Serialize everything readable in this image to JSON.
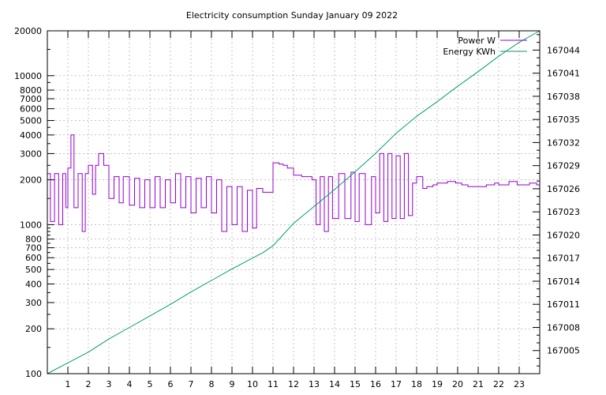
{
  "chart_data": {
    "type": "line",
    "title": "Electricity consumption Sunday January 09 2022",
    "xlabel": "",
    "ylabel": "",
    "y2label": "",
    "x_ticks": [
      "1",
      "2",
      "3",
      "4",
      "5",
      "6",
      "7",
      "8",
      "9",
      "10",
      "11",
      "12",
      "13",
      "14",
      "15",
      "16",
      "17",
      "18",
      "19",
      "20",
      "21",
      "22",
      "23"
    ],
    "xlim": [
      0,
      24
    ],
    "y": {
      "scale": "log",
      "lim": [
        100,
        20000
      ],
      "ticks": [
        100,
        200,
        300,
        400,
        500,
        600,
        700,
        800,
        1000,
        2000,
        3000,
        4000,
        5000,
        6000,
        7000,
        8000,
        10000,
        20000
      ],
      "tick_labels": [
        "100",
        "200",
        "300",
        "400",
        "500",
        "600",
        "700",
        "800",
        "1000",
        "2000",
        "3000",
        "4000",
        "5000",
        "6000",
        "7000",
        "8000",
        "10000",
        "20000"
      ]
    },
    "y2": {
      "scale": "linear",
      "lim": [
        167002,
        167046.5
      ],
      "ticks": [
        167005,
        167008,
        167011,
        167014,
        167017,
        167020,
        167023,
        167026,
        167029,
        167032,
        167035,
        167038,
        167041,
        167044
      ],
      "tick_labels": [
        "167005",
        "167008",
        "167011",
        "167014",
        "167017",
        "167020",
        "167023",
        "167026",
        "167029",
        "167032",
        "167035",
        "167038",
        "167041",
        "167044"
      ]
    },
    "grid": true,
    "legend_position": "top-right",
    "series": [
      {
        "name": "Power W",
        "axis": "y",
        "color": "#9400d3",
        "style": "step",
        "x": [
          0.0,
          0.15,
          0.35,
          0.55,
          0.75,
          0.9,
          1.0,
          1.15,
          1.3,
          1.5,
          1.7,
          1.85,
          2.0,
          2.2,
          2.35,
          2.5,
          2.75,
          3.0,
          3.25,
          3.5,
          3.7,
          4.0,
          4.25,
          4.5,
          4.75,
          5.0,
          5.25,
          5.5,
          5.75,
          6.0,
          6.25,
          6.5,
          6.75,
          7.0,
          7.25,
          7.5,
          7.75,
          8.0,
          8.25,
          8.5,
          8.75,
          9.0,
          9.25,
          9.5,
          9.75,
          10.0,
          10.2,
          10.5,
          11.0,
          11.3,
          11.5,
          11.7,
          12.0,
          12.4,
          12.9,
          13.1,
          13.3,
          13.5,
          13.7,
          13.9,
          14.2,
          14.5,
          14.8,
          15.0,
          15.2,
          15.5,
          15.8,
          16.0,
          16.2,
          16.4,
          16.6,
          16.8,
          17.0,
          17.2,
          17.4,
          17.6,
          17.8,
          18.0,
          18.3,
          18.5,
          18.8,
          19.0,
          19.5,
          19.9,
          20.2,
          20.5,
          20.9,
          21.4,
          21.8,
          22.0,
          22.5,
          22.9,
          23.5,
          23.85,
          24.0
        ],
        "values": [
          2200,
          1050,
          2200,
          1000,
          2200,
          1300,
          2400,
          4000,
          1300,
          2200,
          900,
          2200,
          2500,
          1600,
          2500,
          3000,
          2500,
          1500,
          2100,
          1400,
          2100,
          1350,
          2050,
          1300,
          2000,
          1300,
          2100,
          1300,
          2000,
          1400,
          2200,
          1300,
          2100,
          1200,
          2050,
          1300,
          2100,
          1200,
          2000,
          900,
          1800,
          1000,
          1800,
          900,
          1700,
          950,
          1750,
          1650,
          2600,
          2550,
          2500,
          2400,
          2150,
          2100,
          2000,
          1000,
          2100,
          900,
          2100,
          1100,
          2200,
          1100,
          2250,
          1050,
          2200,
          1000,
          2100,
          1200,
          3000,
          1050,
          3000,
          1100,
          2900,
          1100,
          3000,
          1150,
          1900,
          2100,
          1750,
          1800,
          1850,
          1900,
          1950,
          1900,
          1850,
          1800,
          1800,
          1850,
          1900,
          1850,
          1950,
          1850,
          1900,
          1850,
          1850
        ]
      },
      {
        "name": "Energy KWh",
        "axis": "y2",
        "color": "#009e73",
        "style": "line",
        "x": [
          0,
          1,
          2,
          3,
          4,
          5,
          6,
          7,
          8,
          9,
          10,
          10.5,
          11,
          12,
          13,
          14,
          15,
          16,
          17,
          18,
          19,
          20,
          21,
          22,
          23,
          24
        ],
        "values": [
          167002.0,
          167003.4,
          167004.8,
          167006.5,
          167008.0,
          167009.5,
          167011.0,
          167012.6,
          167014.1,
          167015.6,
          167017.0,
          167017.7,
          167018.6,
          167021.5,
          167023.7,
          167025.9,
          167028.2,
          167030.6,
          167033.2,
          167035.4,
          167037.3,
          167039.3,
          167041.2,
          167043.2,
          167045.0,
          167046.5
        ]
      }
    ]
  }
}
